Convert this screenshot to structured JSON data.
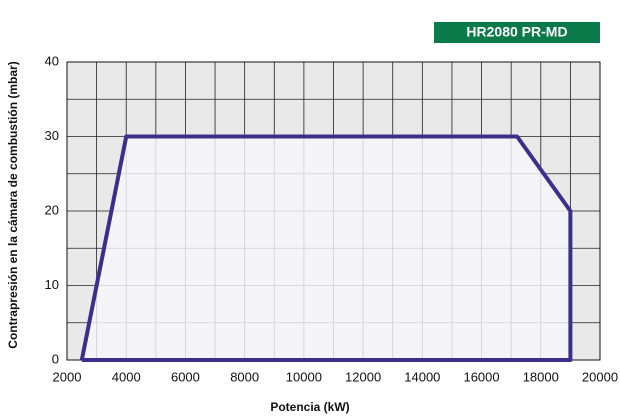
{
  "chart_data": {
    "type": "line",
    "title": "HR2080  PR-MD",
    "xlabel": "Potencia (kW)",
    "ylabel": "Contrapresión en la cámara de combustión (mbar)",
    "series": [
      {
        "name": "HR2080 PR-MD",
        "color": "#3b2f8c",
        "x": [
          2500,
          4000,
          17200,
          19000,
          19000,
          2500
        ],
        "values": [
          0,
          30,
          30,
          20,
          0,
          0
        ]
      }
    ],
    "xlim": [
      2000,
      20000
    ],
    "xticks": [
      2000,
      4000,
      6000,
      8000,
      10000,
      12000,
      14000,
      16000,
      18000,
      20000
    ],
    "ylim": [
      0,
      40
    ],
    "yticks": [
      0,
      10,
      20,
      30,
      40
    ],
    "grid": true,
    "title_color": "#0b7a4b"
  }
}
